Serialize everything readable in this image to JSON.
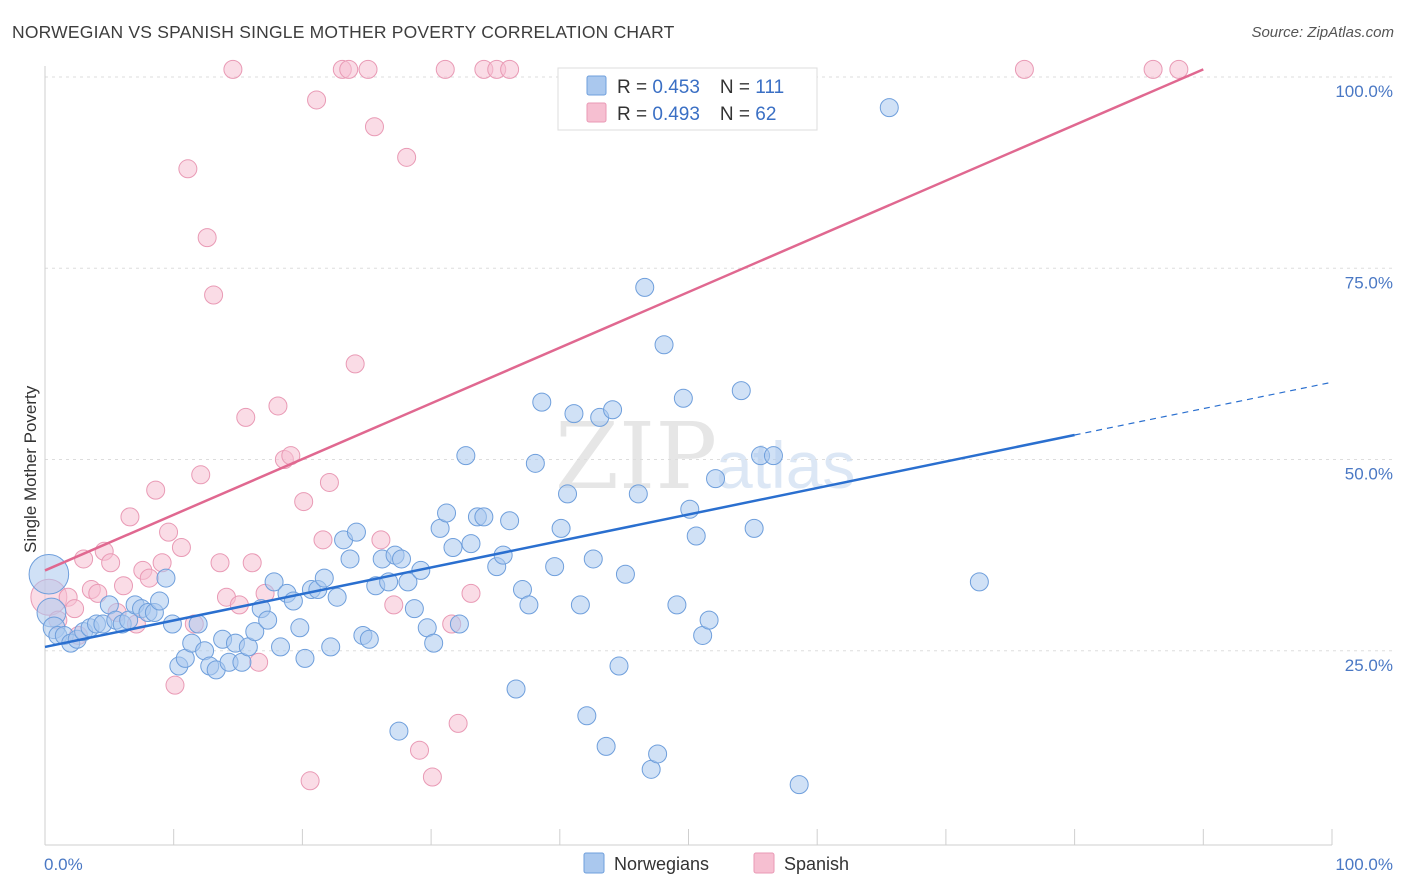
{
  "header": {
    "title": "NORWEGIAN VS SPANISH SINGLE MOTHER POVERTY CORRELATION CHART",
    "source": "Source: ZipAtlas.com"
  },
  "watermark": {
    "zip": "ZIP",
    "atlas": "atlas"
  },
  "colors": {
    "norwegians_fill": "#aac8ee",
    "norwegians_stroke": "#6f9fdc",
    "norwegians_line": "#2a6fcf",
    "spanish_fill": "#f6bfd1",
    "spanish_stroke": "#e99ab5",
    "spanish_line": "#e06890",
    "grid": "#dddddd",
    "tick_label": "#4a78c4"
  },
  "legend": {
    "rows": [
      {
        "r_label": "R = ",
        "r_value": "0.453",
        "n_label": "N = ",
        "n_value": "111"
      },
      {
        "r_label": "R = ",
        "r_value": "0.493",
        "n_label": "N = ",
        "n_value": "62"
      }
    ]
  },
  "chart_data": {
    "type": "scatter",
    "title": "NORWEGIAN VS SPANISH SINGLE MOTHER POVERTY CORRELATION CHART",
    "xlabel": "",
    "ylabel": "Single Mother Poverty",
    "xlim": [
      0,
      100
    ],
    "ylim": [
      0,
      100
    ],
    "x_tick_labels": [
      "0.0%",
      "100.0%"
    ],
    "y_ticks": [
      {
        "value": 25,
        "label": "25.0%"
      },
      {
        "value": 50,
        "label": "50.0%"
      },
      {
        "value": 75,
        "label": "75.0%"
      },
      {
        "value": 100,
        "label": "100.0%"
      }
    ],
    "legend_position": "top-center",
    "grid": true,
    "series": [
      {
        "name": "Norwegians",
        "r": 0.453,
        "n": 111,
        "trend": {
          "x0": 0,
          "y0": 25.5,
          "x1": 80,
          "y1": 53.2,
          "dashed_to_x": 100,
          "dashed_to_y": 60.1
        },
        "points": [
          [
            0.3,
            35,
            2.2
          ],
          [
            0.5,
            30,
            1.6
          ],
          [
            0.7,
            28,
            1.2
          ],
          [
            1,
            27,
            1
          ],
          [
            1.5,
            27,
            1
          ],
          [
            2,
            26,
            1
          ],
          [
            2.5,
            26.5,
            1
          ],
          [
            3,
            27.5,
            1
          ],
          [
            3.5,
            28,
            1
          ],
          [
            4,
            28.5,
            1
          ],
          [
            4.5,
            28.5,
            1
          ],
          [
            5,
            31,
            1
          ],
          [
            5.5,
            29,
            1
          ],
          [
            6,
            28.5,
            1
          ],
          [
            6.5,
            29,
            1
          ],
          [
            7,
            31,
            1
          ],
          [
            7.5,
            30.5,
            1
          ],
          [
            8,
            30,
            1
          ],
          [
            8.5,
            30,
            1
          ],
          [
            8.9,
            31.5,
            1
          ],
          [
            9.4,
            34.5,
            1
          ],
          [
            9.9,
            28.5,
            1
          ],
          [
            10.4,
            23,
            1
          ],
          [
            10.9,
            24,
            1
          ],
          [
            11.4,
            26,
            1
          ],
          [
            11.9,
            28.5,
            1
          ],
          [
            12.4,
            25,
            1
          ],
          [
            12.8,
            23,
            1
          ],
          [
            13.3,
            22.5,
            1
          ],
          [
            13.8,
            26.5,
            1
          ],
          [
            14.3,
            23.5,
            1
          ],
          [
            14.8,
            26,
            1
          ],
          [
            15.3,
            23.5,
            1
          ],
          [
            15.8,
            25.5,
            1
          ],
          [
            16.3,
            27.5,
            1
          ],
          [
            16.8,
            30.5,
            1
          ],
          [
            17.3,
            29,
            1
          ],
          [
            17.8,
            34,
            1
          ],
          [
            18.3,
            25.5,
            1
          ],
          [
            18.8,
            32.5,
            1
          ],
          [
            19.3,
            31.5,
            1
          ],
          [
            19.8,
            28,
            1
          ],
          [
            20.2,
            24,
            1
          ],
          [
            20.7,
            33,
            1
          ],
          [
            21.2,
            33,
            1
          ],
          [
            21.7,
            34.5,
            1
          ],
          [
            22.2,
            25.5,
            1
          ],
          [
            22.7,
            32,
            1
          ],
          [
            23.2,
            39.5,
            1
          ],
          [
            23.7,
            37,
            1
          ],
          [
            24.2,
            40.5,
            1
          ],
          [
            24.7,
            27,
            1
          ],
          [
            25.2,
            26.5,
            1
          ],
          [
            25.7,
            33.5,
            1
          ],
          [
            26.2,
            37,
            1
          ],
          [
            26.7,
            34,
            1
          ],
          [
            27.2,
            37.5,
            1
          ],
          [
            27.7,
            37,
            1
          ],
          [
            28.2,
            34,
            1
          ],
          [
            28.7,
            30.5,
            1
          ],
          [
            29.2,
            35.5,
            1
          ],
          [
            29.7,
            28,
            1
          ],
          [
            30.2,
            26,
            1
          ],
          [
            30.7,
            41,
            1
          ],
          [
            31.2,
            43,
            1
          ],
          [
            31.7,
            38.5,
            1
          ],
          [
            32.2,
            28.5,
            1
          ],
          [
            32.7,
            50.5,
            1
          ],
          [
            33.1,
            39,
            1
          ],
          [
            33.6,
            42.5,
            1
          ],
          [
            34.1,
            42.5,
            1
          ],
          [
            35.1,
            36,
            1
          ],
          [
            35.6,
            37.5,
            1
          ],
          [
            36.1,
            42,
            1
          ],
          [
            36.6,
            20,
            1
          ],
          [
            37.1,
            33,
            1
          ],
          [
            37.6,
            31,
            1
          ],
          [
            38.1,
            49.5,
            1
          ],
          [
            38.6,
            57.5,
            1
          ],
          [
            39.6,
            36,
            1
          ],
          [
            40.1,
            41,
            1
          ],
          [
            40.6,
            45.5,
            1
          ],
          [
            41.1,
            56,
            1
          ],
          [
            41.6,
            31,
            1
          ],
          [
            42.1,
            16.5,
            1
          ],
          [
            42.6,
            37,
            1
          ],
          [
            43.1,
            55.5,
            1
          ],
          [
            43.6,
            12.5,
            1
          ],
          [
            44.1,
            56.5,
            1
          ],
          [
            44.6,
            23,
            1
          ],
          [
            45.1,
            35,
            1
          ],
          [
            46.1,
            45.5,
            1
          ],
          [
            46.6,
            72.5,
            1
          ],
          [
            47.1,
            9.5,
            1
          ],
          [
            47.6,
            11.5,
            1
          ],
          [
            48.1,
            65,
            1
          ],
          [
            49.1,
            31,
            1
          ],
          [
            49.6,
            58,
            1
          ],
          [
            50.1,
            43.5,
            1
          ],
          [
            50.6,
            40,
            1
          ],
          [
            51.1,
            27,
            1
          ],
          [
            51.6,
            29,
            1
          ],
          [
            52.1,
            47.5,
            1
          ],
          [
            54.1,
            59,
            1
          ],
          [
            55.1,
            41,
            1
          ],
          [
            55.6,
            50.5,
            1
          ],
          [
            56.6,
            50.5,
            1
          ],
          [
            58.6,
            7.5,
            1
          ],
          [
            65.6,
            96,
            1
          ],
          [
            72.6,
            34,
            1
          ],
          [
            27.5,
            14.5,
            1
          ]
        ]
      },
      {
        "name": "Spanish",
        "r": 0.493,
        "n": 62,
        "trend": {
          "x0": 0,
          "y0": 35.5,
          "x1": 90,
          "y1": 101
        },
        "points": [
          [
            0.3,
            32,
            2
          ],
          [
            1,
            29,
            1
          ],
          [
            1.8,
            32,
            1
          ],
          [
            2.3,
            30.5,
            1
          ],
          [
            3,
            37,
            1
          ],
          [
            3.6,
            33,
            1
          ],
          [
            4.1,
            32.5,
            1
          ],
          [
            4.6,
            38,
            1
          ],
          [
            5.1,
            36.5,
            1
          ],
          [
            5.6,
            30,
            1
          ],
          [
            6.1,
            33.5,
            1
          ],
          [
            6.6,
            42.5,
            1
          ],
          [
            7.1,
            28.5,
            1
          ],
          [
            7.6,
            35.5,
            1
          ],
          [
            8.1,
            34.5,
            1
          ],
          [
            8.6,
            46,
            1
          ],
          [
            9.1,
            36.5,
            1
          ],
          [
            9.6,
            40.5,
            1
          ],
          [
            10.1,
            20.5,
            1
          ],
          [
            10.6,
            38.5,
            1
          ],
          [
            11.1,
            88,
            1
          ],
          [
            11.6,
            28.5,
            1
          ],
          [
            12.1,
            48,
            1
          ],
          [
            12.6,
            79,
            1
          ],
          [
            13.1,
            71.5,
            1
          ],
          [
            13.6,
            36.5,
            1
          ],
          [
            14.1,
            32,
            1
          ],
          [
            14.6,
            101,
            1
          ],
          [
            15.1,
            31,
            1
          ],
          [
            15.6,
            55.5,
            1
          ],
          [
            16.1,
            36.5,
            1
          ],
          [
            16.6,
            23.5,
            1
          ],
          [
            17.1,
            32.5,
            1
          ],
          [
            18.1,
            57,
            1
          ],
          [
            18.6,
            50,
            1
          ],
          [
            19.1,
            50.5,
            1
          ],
          [
            20.1,
            44.5,
            1
          ],
          [
            20.6,
            8,
            1
          ],
          [
            21.1,
            97,
            1
          ],
          [
            21.6,
            39.5,
            1
          ],
          [
            22.1,
            47,
            1
          ],
          [
            23.1,
            101,
            1
          ],
          [
            23.6,
            101,
            1
          ],
          [
            24.1,
            62.5,
            1
          ],
          [
            25.1,
            101,
            1
          ],
          [
            25.6,
            93.5,
            1
          ],
          [
            26.1,
            39.5,
            1
          ],
          [
            27.1,
            31,
            1
          ],
          [
            28.1,
            89.5,
            1
          ],
          [
            29.1,
            12,
            1
          ],
          [
            30.1,
            8.5,
            1
          ],
          [
            31.1,
            101,
            1
          ],
          [
            31.6,
            28.5,
            1
          ],
          [
            32.1,
            15.5,
            1
          ],
          [
            33.1,
            32.5,
            1
          ],
          [
            34.1,
            101,
            1
          ],
          [
            35.1,
            101,
            1
          ],
          [
            36.1,
            101,
            1
          ],
          [
            76.1,
            101,
            1
          ],
          [
            86.1,
            101,
            1
          ],
          [
            88.1,
            101,
            1
          ],
          [
            2.6,
            27,
            1
          ]
        ]
      }
    ]
  }
}
